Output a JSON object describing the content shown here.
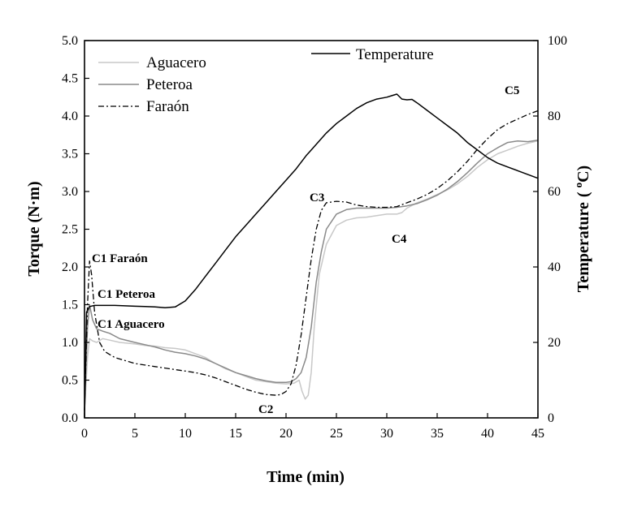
{
  "chart_data": {
    "type": "line",
    "title": "",
    "xlabel": "Time (min)",
    "ylabel": "Torque (N·m)",
    "y2label_main": "Temperature",
    "y2label_open": "( ",
    "y2label_degree": "o",
    "y2label_unit": "C)",
    "xlim": [
      0,
      45
    ],
    "ylim": [
      0,
      5
    ],
    "y2lim": [
      0,
      100
    ],
    "xticks": [
      "0",
      "5",
      "10",
      "15",
      "20",
      "25",
      "30",
      "35",
      "40",
      "45"
    ],
    "yticks": [
      "0.0",
      "0.5",
      "1.0",
      "1.5",
      "2.0",
      "2.5",
      "3.0",
      "3.5",
      "4.0",
      "4.5",
      "5.0"
    ],
    "y2ticks": [
      "0",
      "20",
      "40",
      "60",
      "80",
      "100"
    ],
    "legend": {
      "aguacero": "Aguacero",
      "peteroa": "Peteroa",
      "faraon": "Faraón",
      "temperature": "Temperature"
    },
    "annotations": {
      "c1_faraon": "C1 Faraón",
      "c1_peteroa": "C1 Peteroa",
      "c1_aguacero": "C1 Aguacero",
      "c2": "C2",
      "c3": "C3",
      "c4": "C4",
      "c5": "C5"
    },
    "series": [
      {
        "name": "Aguacero",
        "axis": "left",
        "color": "#c8c8c8",
        "style": "solid",
        "x": [
          0,
          0.3,
          0.5,
          0.8,
          1.2,
          1.8,
          2.5,
          3.5,
          5,
          6,
          7,
          8,
          9,
          10,
          11,
          12,
          13,
          14,
          15,
          16,
          17,
          18,
          19,
          20,
          20.8,
          21.3,
          21.6,
          21.9,
          22.2,
          22.5,
          22.8,
          23.3,
          24,
          25,
          26,
          27,
          28,
          29,
          30,
          31,
          31.5,
          32,
          33,
          34,
          35,
          36,
          37,
          38,
          39,
          40,
          41,
          42,
          43,
          44,
          45
        ],
        "y": [
          0.1,
          0.8,
          1.05,
          1.02,
          1.0,
          1.05,
          1.03,
          1.0,
          0.98,
          0.96,
          0.95,
          0.93,
          0.92,
          0.9,
          0.85,
          0.8,
          0.72,
          0.65,
          0.6,
          0.55,
          0.5,
          0.48,
          0.46,
          0.45,
          0.46,
          0.5,
          0.35,
          0.25,
          0.3,
          0.6,
          1.2,
          1.9,
          2.3,
          2.55,
          2.62,
          2.65,
          2.66,
          2.68,
          2.7,
          2.7,
          2.72,
          2.78,
          2.85,
          2.9,
          2.96,
          3.02,
          3.1,
          3.2,
          3.32,
          3.42,
          3.5,
          3.55,
          3.6,
          3.64,
          3.67
        ]
      },
      {
        "name": "Peteroa",
        "axis": "left",
        "color": "#8a8a8a",
        "style": "solid",
        "x": [
          0,
          0.3,
          0.5,
          0.8,
          1.2,
          1.8,
          2.5,
          3.5,
          5,
          6,
          7,
          8,
          9,
          10,
          11,
          12,
          13,
          14,
          15,
          16,
          17,
          18,
          19,
          20,
          20.5,
          21,
          21.5,
          22,
          22.5,
          23,
          23.5,
          24,
          25,
          26,
          27,
          28,
          29,
          30,
          31,
          32,
          33,
          34,
          35,
          36,
          37,
          38,
          39,
          40,
          41,
          42,
          43,
          44,
          45
        ],
        "y": [
          0.1,
          1.2,
          1.5,
          1.3,
          1.18,
          1.15,
          1.12,
          1.05,
          1.0,
          0.97,
          0.94,
          0.9,
          0.87,
          0.85,
          0.82,
          0.78,
          0.72,
          0.66,
          0.6,
          0.56,
          0.52,
          0.49,
          0.47,
          0.47,
          0.48,
          0.52,
          0.6,
          0.8,
          1.2,
          1.8,
          2.2,
          2.5,
          2.7,
          2.76,
          2.78,
          2.78,
          2.78,
          2.78,
          2.79,
          2.81,
          2.84,
          2.89,
          2.95,
          3.03,
          3.13,
          3.25,
          3.38,
          3.5,
          3.58,
          3.65,
          3.67,
          3.66,
          3.68
        ]
      },
      {
        "name": "Faraón",
        "axis": "left",
        "color": "#000000",
        "style": "dashdot",
        "x": [
          0,
          0.3,
          0.5,
          0.7,
          1.0,
          1.5,
          2.0,
          3.0,
          4.0,
          5,
          6,
          7,
          8,
          9,
          10,
          11,
          12,
          13,
          14,
          15,
          16,
          17,
          18,
          19,
          19.5,
          20,
          20.5,
          21,
          21.5,
          22,
          22.5,
          23,
          23.5,
          24,
          25,
          26,
          27,
          28,
          29,
          30,
          31,
          32,
          33,
          34,
          35,
          36,
          37,
          38,
          39,
          40,
          41,
          42,
          43,
          44,
          45
        ],
        "y": [
          0.1,
          1.5,
          2.08,
          1.9,
          1.4,
          1.0,
          0.88,
          0.8,
          0.76,
          0.72,
          0.7,
          0.68,
          0.66,
          0.64,
          0.62,
          0.6,
          0.57,
          0.53,
          0.48,
          0.43,
          0.38,
          0.34,
          0.31,
          0.3,
          0.31,
          0.35,
          0.45,
          0.7,
          1.1,
          1.6,
          2.1,
          2.5,
          2.75,
          2.85,
          2.87,
          2.86,
          2.82,
          2.8,
          2.79,
          2.79,
          2.8,
          2.85,
          2.9,
          2.96,
          3.04,
          3.14,
          3.26,
          3.4,
          3.56,
          3.7,
          3.82,
          3.9,
          3.96,
          4.02,
          4.07
        ]
      },
      {
        "name": "Temperature",
        "axis": "right",
        "color": "#000000",
        "style": "solid",
        "x": [
          0,
          0.2,
          0.5,
          1,
          2,
          3,
          4,
          5,
          6,
          7,
          8,
          9,
          10,
          11,
          12,
          13,
          14,
          15,
          16,
          17,
          18,
          19,
          20,
          21,
          22,
          23,
          24,
          25,
          26,
          27,
          28,
          29,
          30,
          30.5,
          31,
          31.5,
          32,
          32.5,
          33,
          34,
          35,
          36,
          37,
          38,
          39,
          40,
          41,
          42,
          43,
          44,
          45
        ],
        "y": [
          0,
          28,
          29.5,
          29.8,
          29.8,
          29.8,
          29.7,
          29.6,
          29.5,
          29.4,
          29.2,
          29.4,
          31,
          34,
          37.5,
          41,
          44.5,
          48,
          51,
          54,
          57,
          60,
          63,
          66,
          69.5,
          72.5,
          75.5,
          78,
          80,
          82,
          83.5,
          84.5,
          85,
          85.4,
          85.8,
          84.5,
          84.3,
          84.4,
          83.5,
          81.5,
          79.5,
          77.5,
          75.5,
          73,
          71,
          69,
          67.5,
          66.5,
          65.5,
          64.5,
          63.5
        ]
      }
    ]
  }
}
